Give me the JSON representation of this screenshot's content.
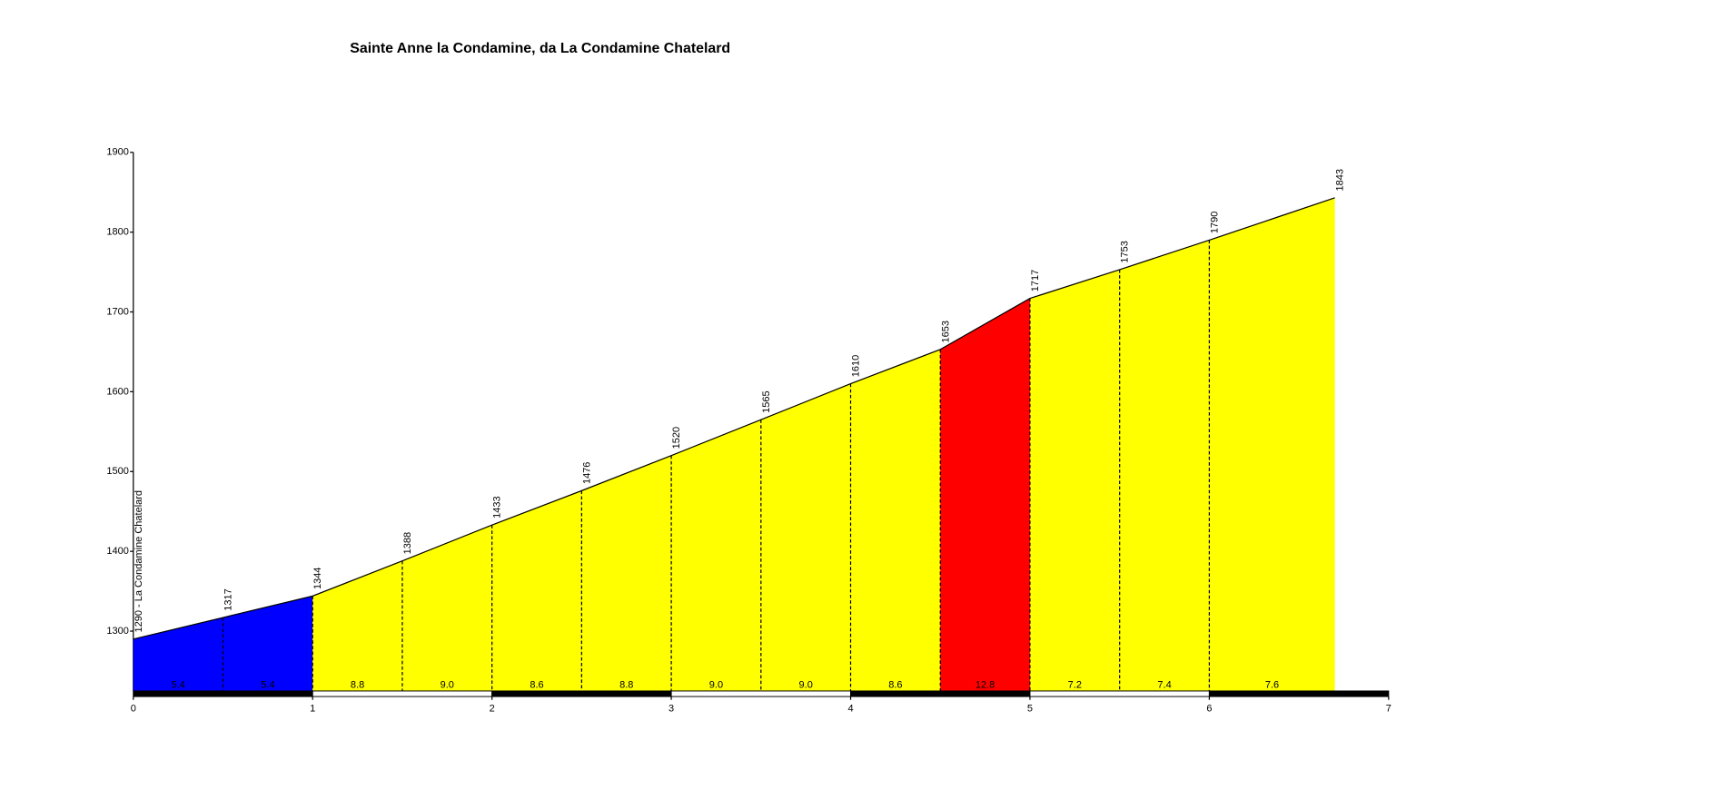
{
  "chart_data": {
    "type": "elevation-profile",
    "title": "Sainte Anne la Condamine, da La Condamine Chatelard",
    "x": [
      0,
      0.5,
      1,
      1.5,
      2,
      2.5,
      3,
      3.5,
      4,
      4.5,
      5,
      5.5,
      6,
      6.7
    ],
    "values": [
      1290,
      1317,
      1344,
      1388,
      1433,
      1476,
      1520,
      1565,
      1610,
      1653,
      1717,
      1753,
      1790,
      1843
    ],
    "value_labels": [
      "1290 - La Condamine Chatelard",
      "1317",
      "1344",
      "1388",
      "1433",
      "1476",
      "1520",
      "1565",
      "1610",
      "1653",
      "1717",
      "1753",
      "1790",
      "1843"
    ],
    "segments": {
      "values": [
        5.4,
        5.4,
        8.8,
        9.0,
        8.6,
        8.8,
        9.0,
        9.0,
        8.6,
        12.8,
        7.2,
        7.4,
        7.6
      ],
      "value_labels": [
        "5.4",
        "5.4",
        "8.8",
        "9.0",
        "8.6",
        "8.8",
        "9.0",
        "9.0",
        "8.6",
        "12.8",
        "7.2",
        "7.4",
        "7.6"
      ],
      "colors": [
        "#0000ff",
        "#0000ff",
        "#ffff00",
        "#ffff00",
        "#ffff00",
        "#ffff00",
        "#ffff00",
        "#ffff00",
        "#ffff00",
        "#ff0000",
        "#ffff00",
        "#ffff00",
        "#ffff00"
      ]
    },
    "xlim": [
      0,
      7
    ],
    "xticks": [
      0,
      1,
      2,
      3,
      4,
      5,
      6,
      7
    ],
    "ylim": [
      1225,
      1900
    ],
    "yticks": [
      1300,
      1400,
      1500,
      1600,
      1700,
      1800,
      1900
    ]
  }
}
